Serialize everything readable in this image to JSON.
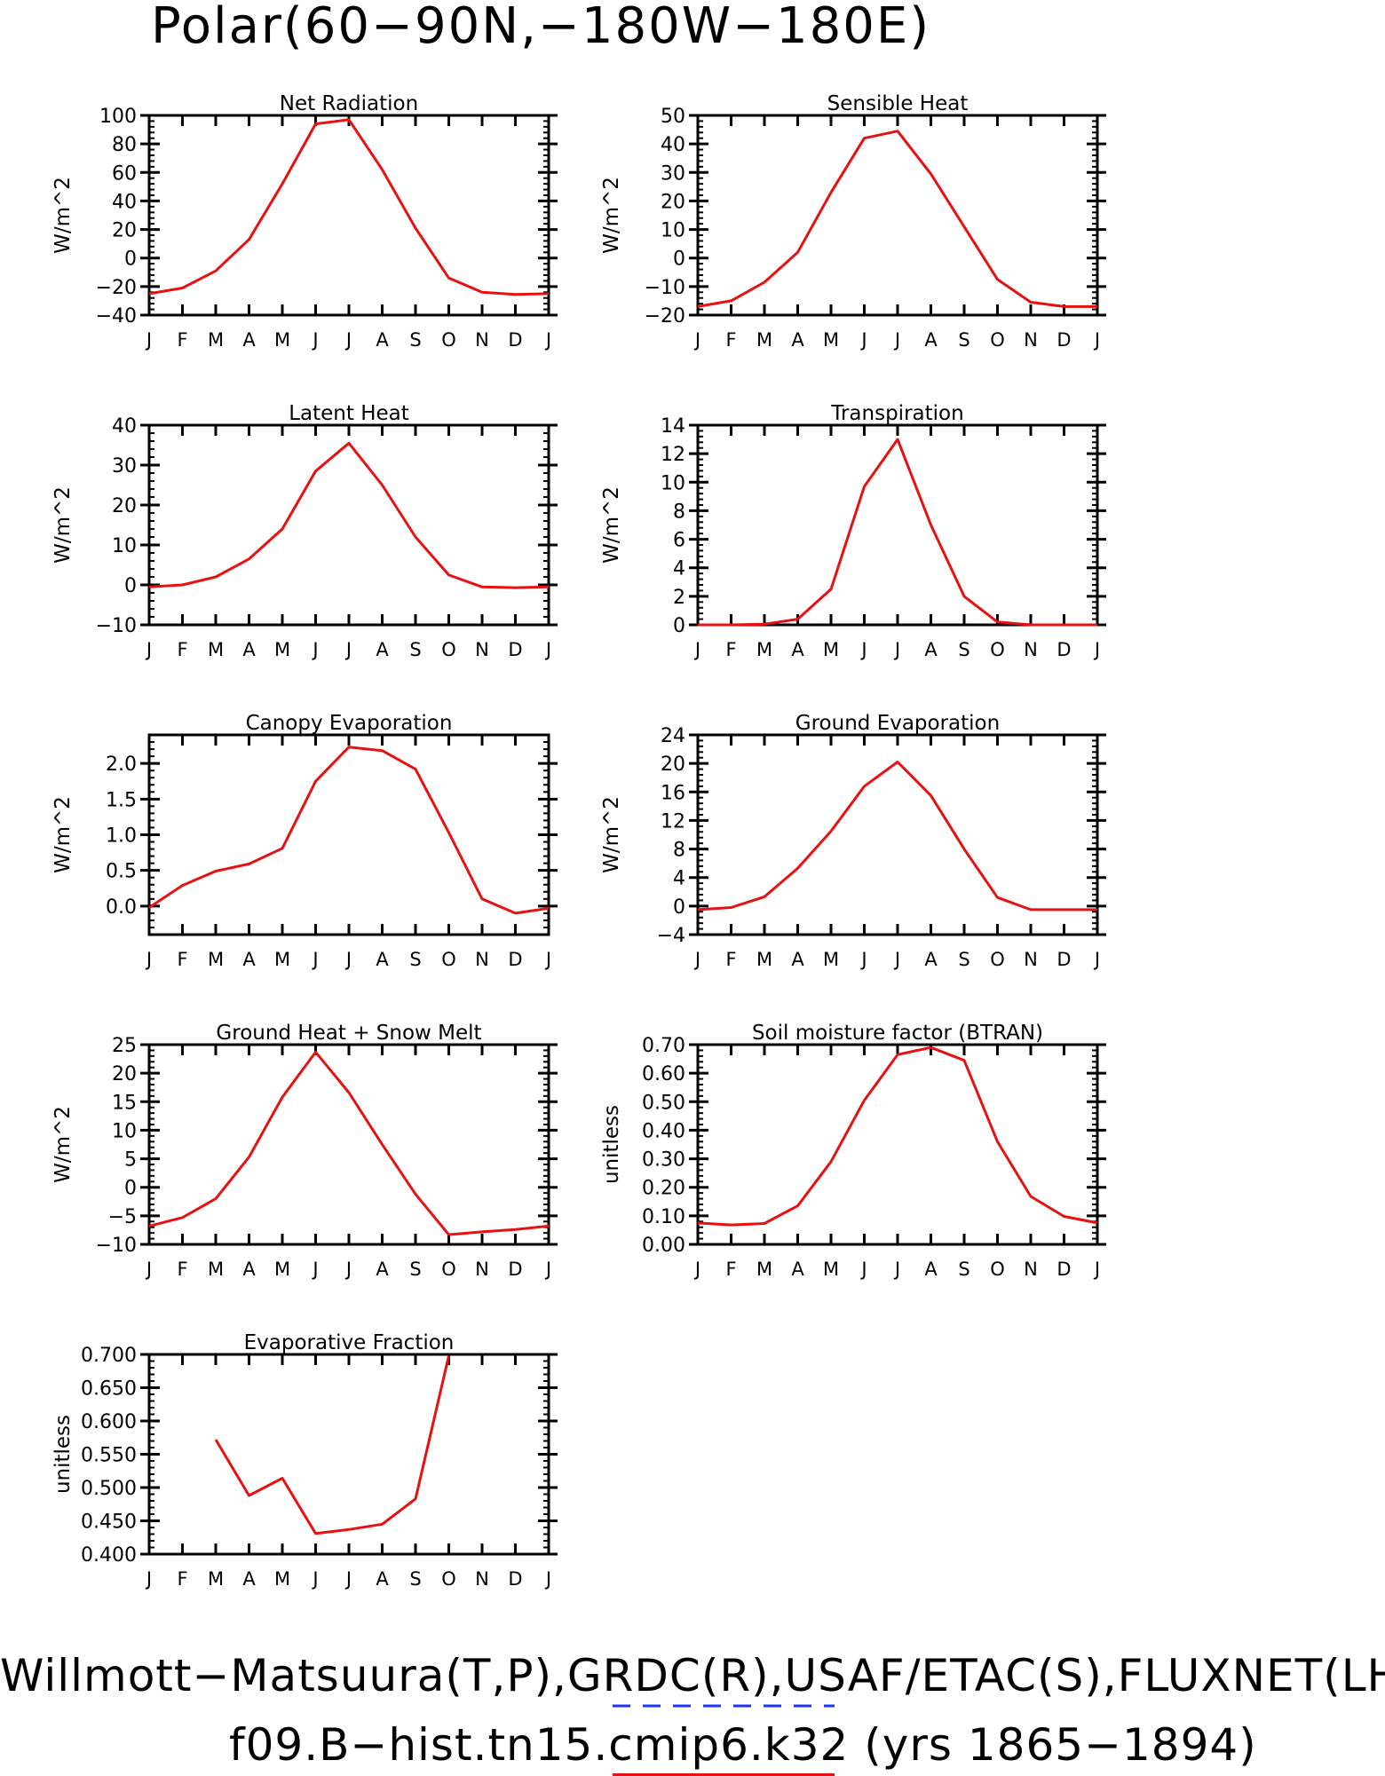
{
  "page_title": "Polar(60−90N,−180W−180E)",
  "colors": {
    "model_line": "#e81010",
    "obs_line": "#1a33ff",
    "axis": "#000000"
  },
  "x_ticks": [
    "J",
    "F",
    "M",
    "A",
    "M",
    "J",
    "J",
    "A",
    "S",
    "O",
    "N",
    "D",
    "J"
  ],
  "chart_data": [
    {
      "type": "line",
      "title": "Net Radiation",
      "ylabel": "W/m^2",
      "ylim": [
        -40,
        100
      ],
      "yticks": [
        -40,
        -20,
        0,
        20,
        40,
        60,
        80,
        100
      ],
      "yticklabels": [
        "−40",
        "−20",
        "0",
        "20",
        "40",
        "60",
        "80",
        "100"
      ],
      "series": [
        {
          "values": [
            -25,
            -21,
            -9,
            13,
            52,
            94,
            97,
            62,
            21,
            -14,
            -24,
            -25.5,
            -25
          ]
        }
      ]
    },
    {
      "type": "line",
      "title": "Sensible Heat",
      "ylabel": "W/m^2",
      "ylim": [
        -20,
        50
      ],
      "yticks": [
        -20,
        -10,
        0,
        10,
        20,
        30,
        40,
        50
      ],
      "yticklabels": [
        "−20",
        "−10",
        "0",
        "10",
        "20",
        "30",
        "40",
        "50"
      ],
      "series": [
        {
          "values": [
            -17,
            -15,
            -8.5,
            2,
            23,
            42,
            44.5,
            29.5,
            11,
            -7.5,
            -15.5,
            -17,
            -17
          ]
        }
      ]
    },
    {
      "type": "line",
      "title": "Latent Heat",
      "ylabel": "W/m^2",
      "ylim": [
        -10,
        40
      ],
      "yticks": [
        -10,
        0,
        10,
        20,
        30,
        40
      ],
      "yticklabels": [
        "−10",
        "0",
        "10",
        "20",
        "30",
        "40"
      ],
      "series": [
        {
          "values": [
            -0.5,
            0,
            2,
            6.5,
            14,
            28.5,
            35.5,
            25,
            12,
            2.5,
            -0.5,
            -0.7,
            -0.5
          ]
        }
      ]
    },
    {
      "type": "line",
      "title": "Transpiration",
      "ylabel": "W/m^2",
      "ylim": [
        0,
        14
      ],
      "yticks": [
        0,
        2,
        4,
        6,
        8,
        10,
        12,
        14
      ],
      "yticklabels": [
        "0",
        "2",
        "4",
        "6",
        "8",
        "10",
        "12",
        "14"
      ],
      "series": [
        {
          "values": [
            0,
            0,
            0.05,
            0.4,
            2.5,
            9.7,
            13,
            7,
            2,
            0.2,
            0,
            0,
            0
          ]
        }
      ]
    },
    {
      "type": "line",
      "title": "Canopy Evaporation",
      "ylabel": "W/m^2",
      "ylim": [
        -0.4,
        2.4
      ],
      "yticks": [
        0,
        0.5,
        1.0,
        1.5,
        2.0
      ],
      "yticklabels": [
        "0.0",
        "0.5",
        "1.0",
        "1.5",
        "2.0"
      ],
      "series": [
        {
          "values": [
            -0.02,
            0.29,
            0.49,
            0.59,
            0.81,
            1.75,
            2.23,
            2.18,
            1.92,
            1.03,
            0.1,
            -0.1,
            -0.03
          ]
        }
      ]
    },
    {
      "type": "line",
      "title": "Ground Evaporation",
      "ylabel": "W/m^2",
      "ylim": [
        -4,
        24
      ],
      "yticks": [
        -4,
        0,
        4,
        8,
        12,
        16,
        20,
        24
      ],
      "yticklabels": [
        "−4",
        "0",
        "4",
        "8",
        "12",
        "16",
        "20",
        "24"
      ],
      "series": [
        {
          "values": [
            -0.5,
            -0.2,
            1.3,
            5.3,
            10.5,
            16.8,
            20.2,
            15.5,
            8,
            1.2,
            -0.5,
            -0.5,
            -0.5
          ]
        }
      ]
    },
    {
      "type": "line",
      "title": "Ground Heat + Snow Melt",
      "ylabel": "W/m^2",
      "ylim": [
        -10,
        25
      ],
      "yticks": [
        -10,
        -5,
        0,
        5,
        10,
        15,
        20,
        25
      ],
      "yticklabels": [
        "−10",
        "−5",
        "0",
        "5",
        "10",
        "15",
        "20",
        "25"
      ],
      "series": [
        {
          "values": [
            -6.8,
            -5.3,
            -2,
            5.3,
            15.8,
            23.7,
            16.6,
            7.5,
            -1.2,
            -8.3,
            -7.8,
            -7.4,
            -6.8
          ]
        }
      ]
    },
    {
      "type": "line",
      "title": "Soil moisture factor (BTRAN)",
      "ylabel": "unitless",
      "ylim": [
        0,
        0.7
      ],
      "yticks": [
        0,
        0.1,
        0.2,
        0.3,
        0.4,
        0.5,
        0.6,
        0.7
      ],
      "yticklabels": [
        "0.00",
        "0.10",
        "0.20",
        "0.30",
        "0.40",
        "0.50",
        "0.60",
        "0.70"
      ],
      "series": [
        {
          "values": [
            0.075,
            0.068,
            0.073,
            0.135,
            0.29,
            0.505,
            0.665,
            0.69,
            0.645,
            0.36,
            0.168,
            0.098,
            0.075
          ]
        }
      ]
    },
    {
      "type": "line",
      "title": "Evaporative Fraction",
      "ylabel": "unitless",
      "ylim": [
        0.4,
        0.7
      ],
      "yticks": [
        0.4,
        0.45,
        0.5,
        0.55,
        0.6,
        0.65,
        0.7
      ],
      "yticklabels": [
        "0.400",
        "0.450",
        "0.500",
        "0.550",
        "0.600",
        "0.650",
        "0.700"
      ],
      "series": [
        {
          "values": [
            null,
            null,
            0.572,
            0.488,
            0.514,
            0.431,
            0.437,
            0.445,
            0.483,
            0.698,
            null,
            null,
            null
          ]
        }
      ]
    }
  ],
  "footer": {
    "obs_label": "Willmott−Matsuura(T,P),GRDC(R),USAF/ETAC(S),FLUXNET(LHF,GPP)",
    "model_label": "f09.B−hist.tn15.cmip6.k32 (yrs 1865−1894)"
  }
}
